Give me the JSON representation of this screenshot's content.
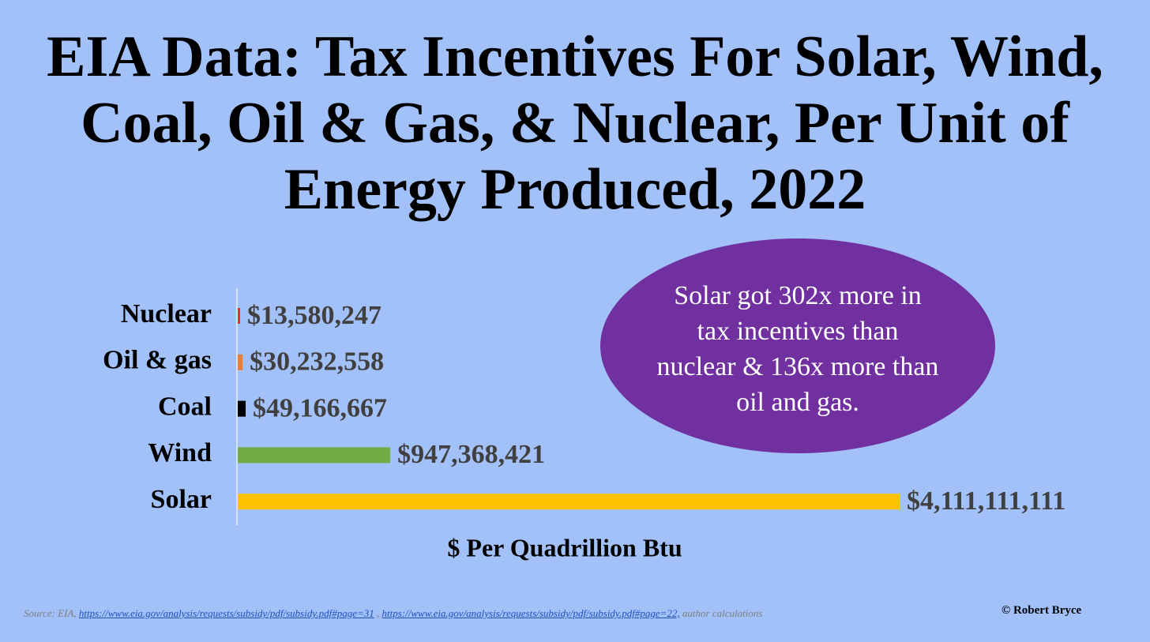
{
  "chart_data": {
    "type": "bar",
    "orientation": "horizontal",
    "title": "EIA Data: Tax Incentives For Solar, Wind, Coal, Oil & Gas, & Nuclear, Per Unit of Energy Produced, 2022",
    "categories": [
      "Nuclear",
      "Oil & gas",
      "Coal",
      "Wind",
      "Solar"
    ],
    "values": [
      13580247,
      30232558,
      49166667,
      947368421,
      4111111111
    ],
    "value_labels": [
      "$13,580,247",
      "$30,232,558",
      "$49,166,667",
      "$947,368,421",
      "$4,111,111,111"
    ],
    "colors": [
      "#e0342a",
      "#ed7d31",
      "#000000",
      "#70ad47",
      "#ffc000"
    ],
    "xlabel": "$ Per Quadrillion Btu",
    "annotation": "Solar got 302x more in tax incentives than nuclear & 136x more than oil and gas.",
    "source": [
      "Source: EIA,",
      "https://www.eia.gov/analysis/requests/subsidy/pdf/subsidy.pdf#page=31",
      ",",
      "https://www.eia.gov/analysis/requests/subsidy/pdf/subsidy.pdf#page=22,",
      "author calculations"
    ],
    "credit": "© Robert Bryce"
  }
}
